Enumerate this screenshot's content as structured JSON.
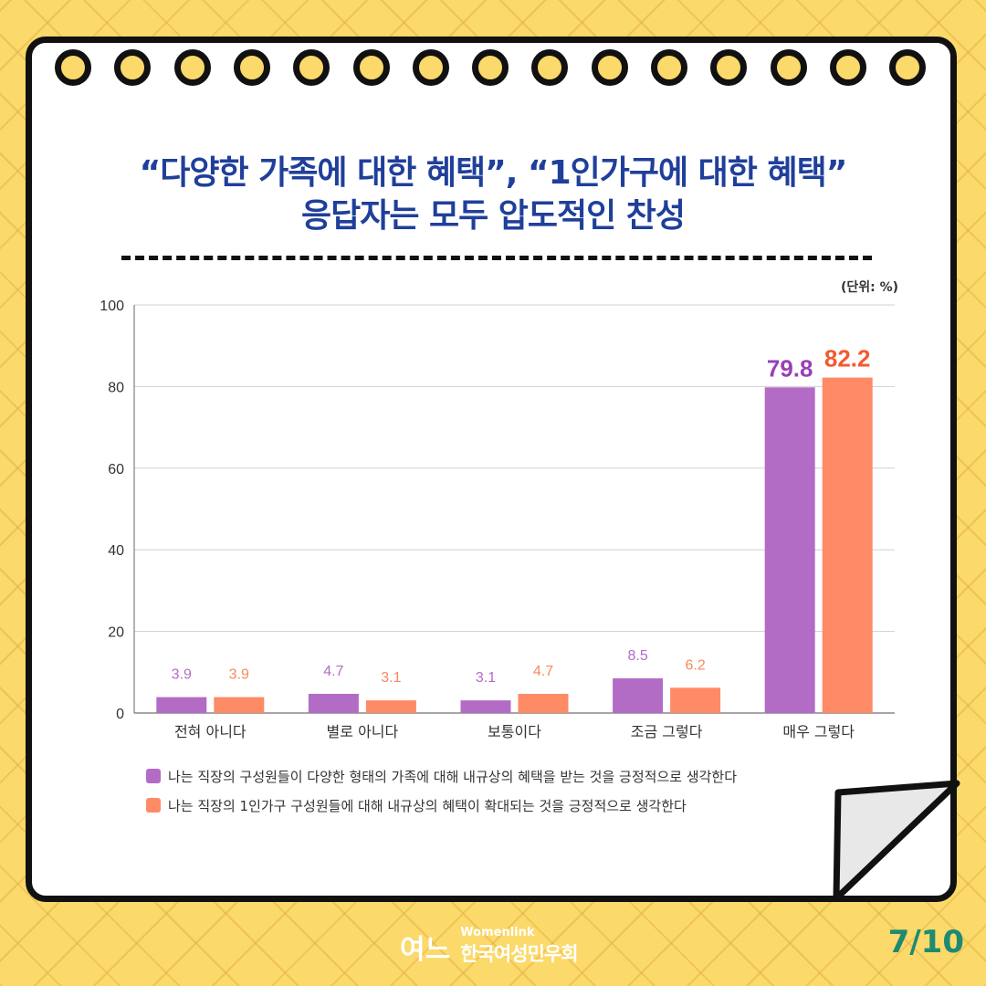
{
  "title_line1": "“다양한 가족에 대한 혜택”, “1인가구에 대한 혜택”",
  "title_line2_prefix": "응답자는 모두 ",
  "title_line2_highlight": "압도적인 찬성",
  "unit_label": "(단위: %)",
  "colors": {
    "series1": "#b36cc6",
    "series2": "#fe8a66",
    "title": "#1f3f9a",
    "page": "#1e8a72"
  },
  "chart_data": {
    "type": "bar",
    "categories": [
      "전혀 아니다",
      "별로 아니다",
      "보통이다",
      "조금 그렇다",
      "매우 그렇다"
    ],
    "series": [
      {
        "name": "나는 직장의 구성원들이 다양한 형태의 가족에 대해 내규상의 혜택을 받는 것을 긍정적으로 생각한다",
        "values": [
          3.9,
          4.7,
          3.1,
          8.5,
          79.8
        ]
      },
      {
        "name": "나는 직장의 1인가구 구성원들에 대해 내규상의 혜택이 확대되는 것을 긍정적으로 생각한다",
        "values": [
          3.9,
          3.1,
          4.7,
          6.2,
          82.2
        ]
      }
    ],
    "yticks": [
      "0",
      "20",
      "40",
      "60",
      "80",
      "100"
    ],
    "ylim": [
      0,
      100
    ],
    "grid": true,
    "legend": "bottom"
  },
  "footer": {
    "brand_en": "Womenlink",
    "brand_ko": "한국여성민우회",
    "logo_text": "여느",
    "page": "7/10"
  }
}
